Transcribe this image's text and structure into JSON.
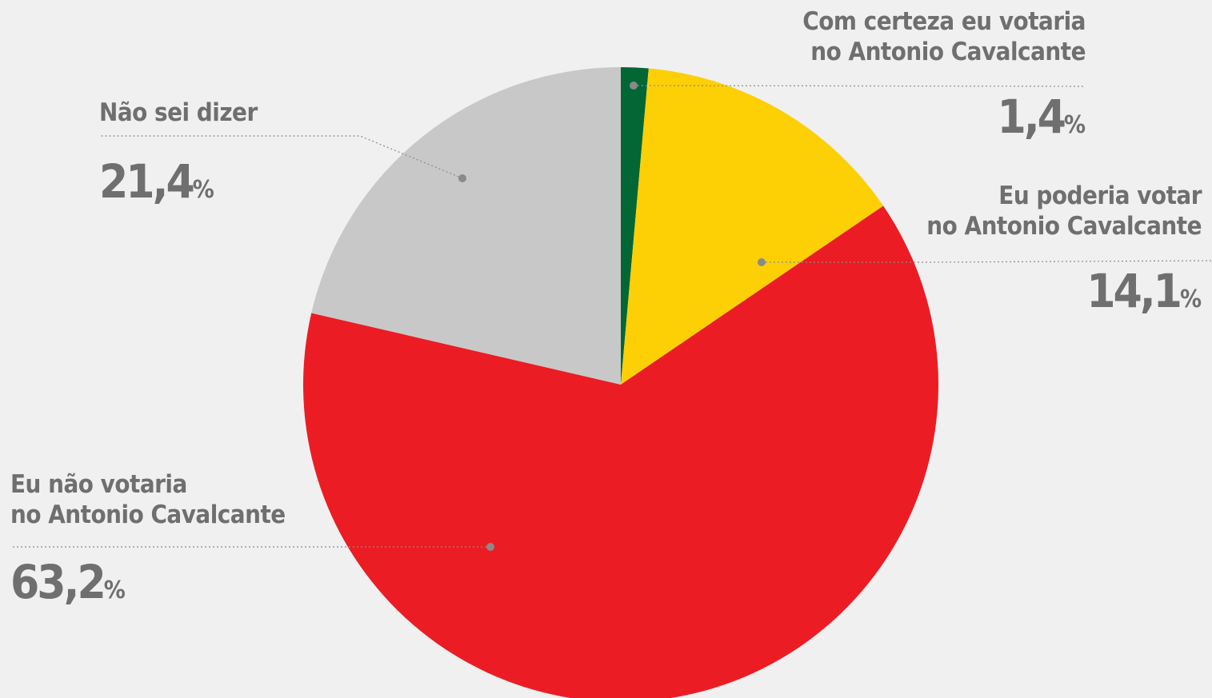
{
  "chart_data": {
    "type": "pie",
    "start_angle_deg": 0,
    "direction": "clockwise",
    "slices": [
      {
        "label": "Com certeza eu votaria no Antonio Cavalcante",
        "label_lines": [
          "Com certeza eu votaria",
          "no Antonio Cavalcante"
        ],
        "value": 1.4,
        "display": "1,4",
        "color": "#036635"
      },
      {
        "label": "Eu poderia votar no Antonio Cavalcante",
        "label_lines": [
          "Eu poderia votar",
          "no Antonio Cavalcante"
        ],
        "value": 14.1,
        "display": "14,1",
        "color": "#fdcf05"
      },
      {
        "label": "Eu não votaria no Antonio Cavalcante",
        "label_lines": [
          "Eu não votaria",
          "no Antonio Cavalcante"
        ],
        "value": 63.2,
        "display": "63,2",
        "color": "#ec1c24"
      },
      {
        "label": "Não sei dizer",
        "label_lines": [
          "Não sei dizer"
        ],
        "value": 21.4,
        "display": "21,4",
        "color": "#c8c8c8"
      }
    ],
    "percent_sign": "%"
  },
  "colors": {
    "background": "#f0f0f0",
    "label_text": "#6f6f6f",
    "leader": "#8a8a8a"
  }
}
